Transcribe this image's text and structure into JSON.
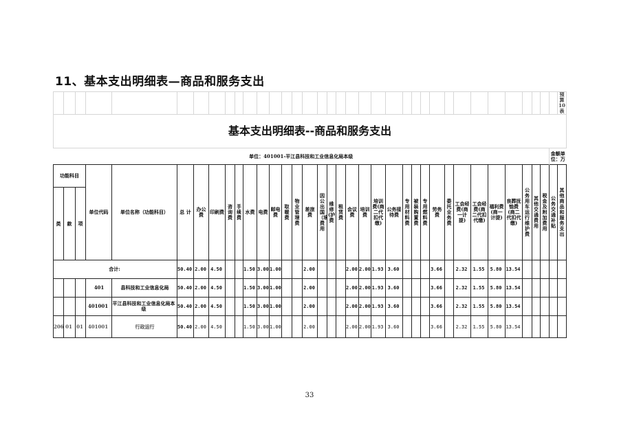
{
  "heading": "11、基本支出明细表—商品和服务支出",
  "page_number": "33",
  "sheet": {
    "form_no": "预算10表",
    "title": "基本支出明细表--商品和服务支出",
    "unit": "单位：401001-平江县科技和工业信息化局本级",
    "amount_unit": "金额单位：万",
    "headers": {
      "func_group": "功能科目",
      "lei": "类",
      "kuan": "款",
      "xiang": "项",
      "unit_code": "单位代码",
      "unit_name": "单位名称（功能科目）",
      "columns": [
        "总 计",
        "办公费",
        "印刷费",
        "咨询费",
        "手续费",
        "水费",
        "电费",
        "邮电费",
        "取暖费",
        "物业管理费",
        "差旅费",
        "因公出国（境）费用",
        "维修(护)费",
        "租赁费",
        "会议费",
        "培训费",
        "培训费(商二代扣代缴)",
        "公务接待费",
        "专用材料费",
        "被装购置费",
        "专用燃料费",
        "劳务费",
        "委托业务费",
        "工会经费(商一计提)",
        "工会经费(商二代扣代缴)",
        "福利费(商一计提)",
        "丧葬抚恤费(商二代扣代缴)",
        "公务用车运行维护费",
        "其他交通费用",
        "税金及附加费用",
        "公务交通补贴",
        "其他商品和服务支出"
      ]
    },
    "rows": [
      {
        "type": "sum",
        "label": "合计:",
        "values": [
          "50.40",
          "2.00",
          "4.50",
          "",
          "",
          "1.50",
          "3.00",
          "1.00",
          "",
          "",
          "2.00",
          "",
          "",
          "",
          "2.00",
          "2.00",
          "1.93",
          "3.60",
          "",
          "",
          "",
          "3.66",
          "",
          "2.32",
          "1.55",
          "5.80",
          "13.54",
          "",
          "",
          "",
          "",
          ""
        ]
      },
      {
        "type": "dept",
        "lei": "",
        "kuan": "",
        "xiang": "",
        "code": "401",
        "name": "县科技和工业信息化局",
        "values": [
          "50.40",
          "2.00",
          "4.50",
          "",
          "",
          "1.50",
          "3.00",
          "1.00",
          "",
          "",
          "2.00",
          "",
          "",
          "",
          "2.00",
          "2.00",
          "1.93",
          "3.60",
          "",
          "",
          "",
          "3.66",
          "",
          "2.32",
          "1.55",
          "5.80",
          "13.54",
          "",
          "",
          "",
          "",
          ""
        ]
      },
      {
        "type": "unit",
        "lei": "",
        "kuan": "",
        "xiang": "",
        "code": "401001",
        "name": "平江县科技和工业信息化局本级",
        "values": [
          "50.40",
          "2.00",
          "4.50",
          "",
          "",
          "1.50",
          "3.00",
          "1.00",
          "",
          "",
          "2.00",
          "",
          "",
          "",
          "2.00",
          "2.00",
          "1.93",
          "3.60",
          "",
          "",
          "",
          "3.66",
          "",
          "2.32",
          "1.55",
          "5.80",
          "13.54",
          "",
          "",
          "",
          "",
          ""
        ]
      },
      {
        "type": "detail",
        "lei": "206",
        "kuan": "01",
        "xiang": "01",
        "code": "401001",
        "name": "行政运行",
        "values": [
          "50.40",
          "2.00",
          "4.50",
          "",
          "",
          "1.50",
          "3.00",
          "1.00",
          "",
          "",
          "2.00",
          "",
          "",
          "",
          "2.00",
          "2.00",
          "1.93",
          "3.60",
          "",
          "",
          "",
          "3.66",
          "",
          "2.32",
          "1.55",
          "5.80",
          "13.54",
          "",
          "",
          "",
          "",
          ""
        ]
      }
    ]
  }
}
